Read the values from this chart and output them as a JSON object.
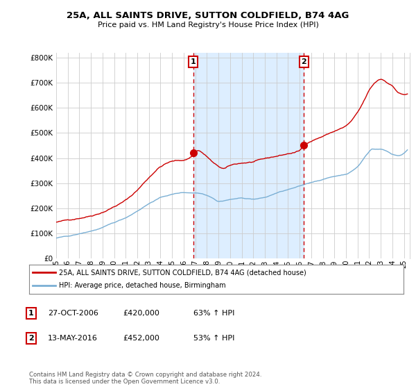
{
  "title1": "25A, ALL SAINTS DRIVE, SUTTON COLDFIELD, B74 4AG",
  "title2": "Price paid vs. HM Land Registry's House Price Index (HPI)",
  "ylabel_ticks": [
    "£0",
    "£100K",
    "£200K",
    "£300K",
    "£400K",
    "£500K",
    "£600K",
    "£700K",
    "£800K"
  ],
  "ytick_values": [
    0,
    100000,
    200000,
    300000,
    400000,
    500000,
    600000,
    700000,
    800000
  ],
  "ylim": [
    0,
    820000
  ],
  "xlim_start": 1995.0,
  "xlim_end": 2025.5,
  "marker1_x": 2006.82,
  "marker1_y": 420000,
  "marker1_label": "1",
  "marker2_x": 2016.37,
  "marker2_y": 452000,
  "marker2_label": "2",
  "red_line_color": "#cc0000",
  "blue_line_color": "#7aafd4",
  "shade_color": "#ddeeff",
  "marker_box_color": "#cc0000",
  "legend_line1": "25A, ALL SAINTS DRIVE, SUTTON COLDFIELD, B74 4AG (detached house)",
  "legend_line2": "HPI: Average price, detached house, Birmingham",
  "footer": "Contains HM Land Registry data © Crown copyright and database right 2024.\nThis data is licensed under the Open Government Licence v3.0.",
  "background_color": "#ffffff",
  "grid_color": "#cccccc",
  "xtick_years": [
    1995,
    1996,
    1997,
    1998,
    1999,
    2000,
    2001,
    2002,
    2003,
    2004,
    2005,
    2006,
    2007,
    2008,
    2009,
    2010,
    2011,
    2012,
    2013,
    2014,
    2015,
    2016,
    2017,
    2018,
    2019,
    2020,
    2021,
    2022,
    2023,
    2024,
    2025
  ]
}
